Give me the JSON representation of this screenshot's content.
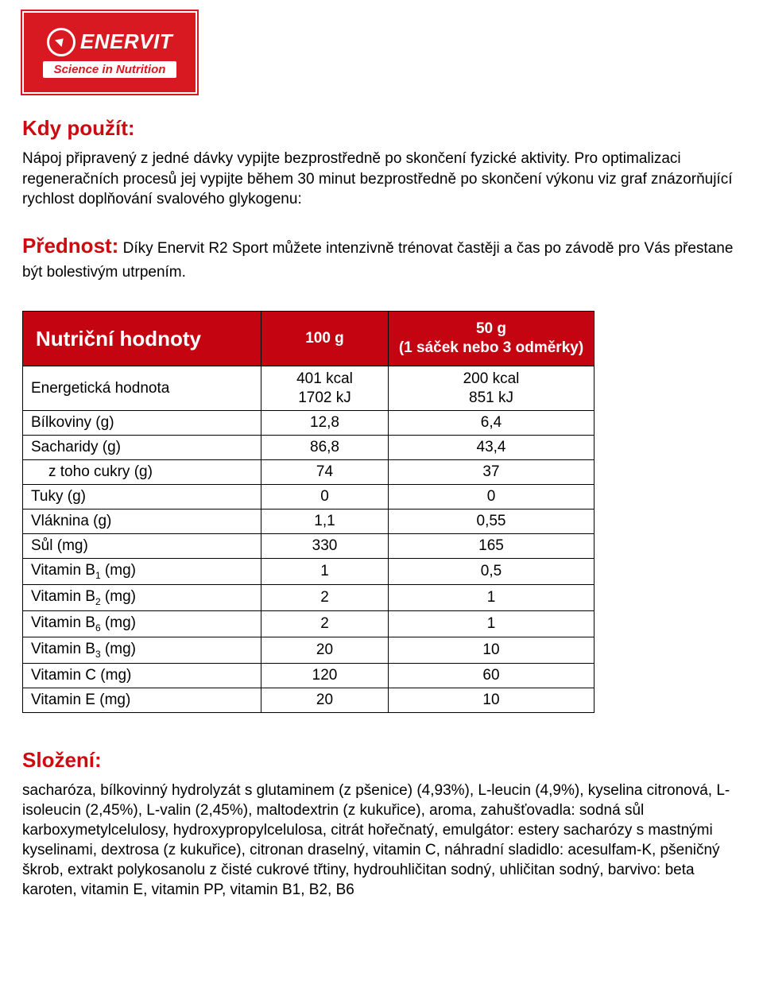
{
  "logo": {
    "brand": "ENERVIT",
    "tagline": "Science in Nutrition"
  },
  "section1": {
    "heading": "Kdy použít:",
    "body": "Nápoj připravený z jedné dávky vypijte bezprostředně po skončení fyzické aktivity. Pro optimalizaci regeneračních procesů jej vypijte během 30 minut bezprostředně po skončení výkonu viz graf znázorňující rychlost doplňování svalového glykogenu:"
  },
  "section2": {
    "heading": "Přednost:",
    "body": " Díky Enervit R2 Sport můžete intenzivně trénovat častěji a čas po závodě pro Vás přestane být bolestivým utrpením."
  },
  "table": {
    "title": "Nutriční hodnoty",
    "col2": "100 g",
    "col3_line1": "50 g",
    "col3_line2": "(1 sáček nebo 3 odměrky)",
    "rows": [
      {
        "label": "Energetická hodnota",
        "v1_l1": "401 kcal",
        "v1_l2": "1702 kJ",
        "v2_l1": "200 kcal",
        "v2_l2": "851 kJ",
        "twoLine": true
      },
      {
        "label": "Bílkoviny (g)",
        "v1": "12,8",
        "v2": "6,4"
      },
      {
        "label": "Sacharidy (g)",
        "v1": "86,8",
        "v2": "43,4"
      },
      {
        "label": "z toho cukry (g)",
        "v1": "74",
        "v2": "37",
        "indent": true
      },
      {
        "label": "Tuky (g)",
        "v1": "0",
        "v2": "0"
      },
      {
        "label": "Vláknina (g)",
        "v1": "1,1",
        "v2": "0,55"
      },
      {
        "label": "Sůl (mg)",
        "v1": "330",
        "v2": "165"
      },
      {
        "label": "Vitamin B",
        "sub": "1",
        "unit": " (mg)",
        "v1": "1",
        "v2": "0,5"
      },
      {
        "label": "Vitamin B",
        "sub": "2",
        "unit": " (mg)",
        "v1": "2",
        "v2": "1"
      },
      {
        "label": "Vitamin B",
        "sub": "6",
        "unit": " (mg)",
        "v1": "2",
        "v2": "1"
      },
      {
        "label": "Vitamin B",
        "sub": "3",
        "unit": " (mg)",
        "v1": "20",
        "v2": "10"
      },
      {
        "label": "Vitamin C (mg)",
        "v1": "120",
        "v2": "60"
      },
      {
        "label": "Vitamin E (mg)",
        "v1": "20",
        "v2": "10"
      }
    ]
  },
  "composition": {
    "heading": "Složení:",
    "body": "sacharóza, bílkovinný hydrolyzát s glutaminem (z pšenice) (4,93%), L-leucin (4,9%), kyselina citronová, L-isoleucin (2,45%), L-valin (2,45%), maltodextrin (z kukuřice), aroma, zahušťovadla: sodná sůl karboxymetylcelulosy, hydroxypropylcelulosa, citrát hořečnatý, emulgátor: estery sacharózy s mastnými kyselinami, dextrosa (z kukuřice), citronan draselný, vitamin C, náhradní sladidlo: acesulfam-K, pšeničný škrob, extrakt polykosanolu z čisté cukrové třtiny, hydrouhličitan sodný, uhličitan sodný, barvivo: beta karoten, vitamin E, vitamin PP, vitamin B1, B2, B6"
  }
}
